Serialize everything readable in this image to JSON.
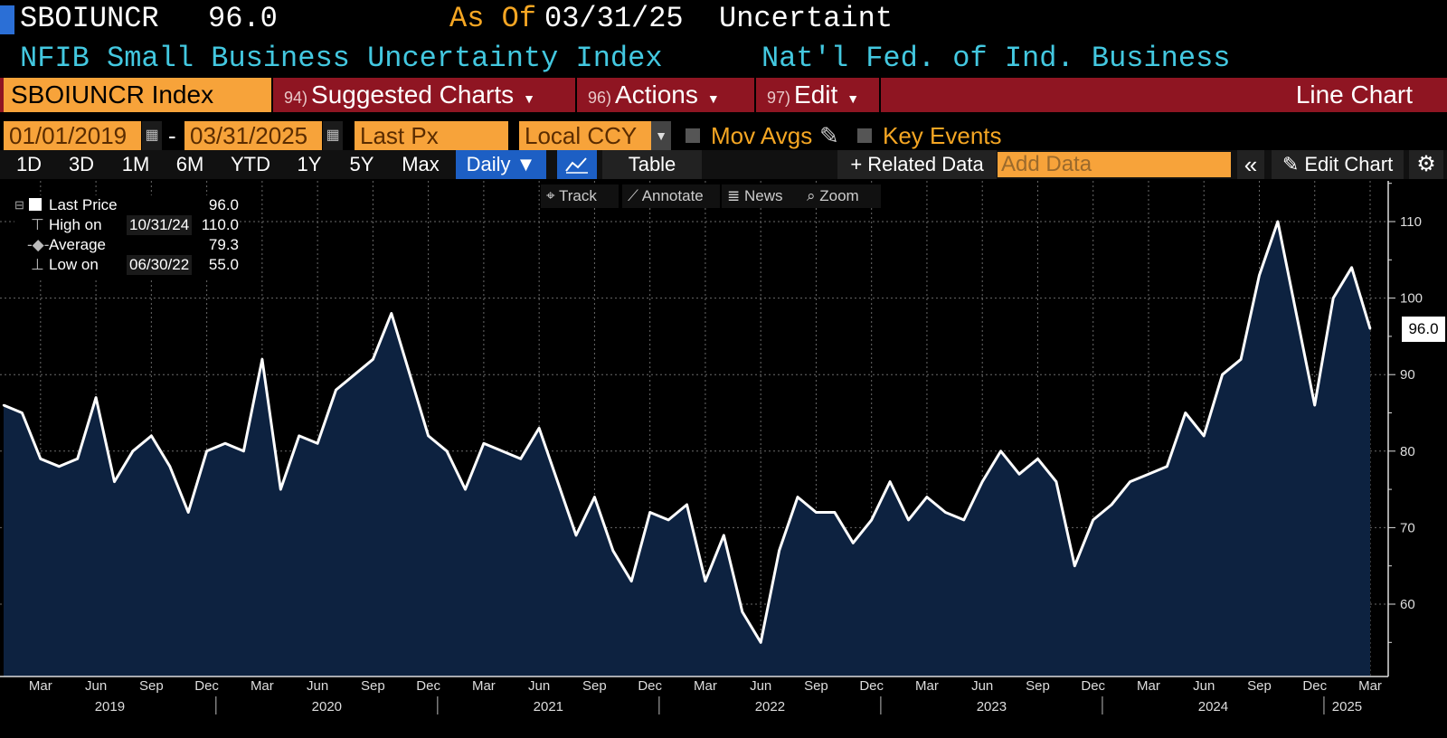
{
  "header": {
    "ticker": "SBOIUNCR",
    "last_value": "96.0",
    "as_of_label": "As Of",
    "as_of_date": "03/31/25",
    "field": "Uncertaint",
    "name": "NFIB Small Business Uncertainty Index",
    "source": "Nat'l Fed. of Ind. Business"
  },
  "toolbar": {
    "security": "SBOIUNCR Index",
    "menus": [
      {
        "num": "94)",
        "label": "Suggested Charts"
      },
      {
        "num": "96)",
        "label": "Actions"
      },
      {
        "num": "97)",
        "label": "Edit"
      }
    ],
    "chart_type": "Line Chart",
    "start_date": "01/01/2019",
    "end_date": "03/31/2025",
    "price_field": "Last Px",
    "currency": "Local CCY",
    "mov_avgs": "Mov Avgs",
    "key_events": "Key Events",
    "ranges": [
      "1D",
      "3D",
      "1M",
      "6M",
      "YTD",
      "1Y",
      "5Y",
      "Max"
    ],
    "period": "Daily ▼",
    "table": "Table",
    "related": "+ Related Data",
    "add_data_placeholder": "Add Data",
    "edit_chart": "Edit Chart",
    "chart_tools": [
      "Track",
      "Annotate",
      "News",
      "Zoom"
    ]
  },
  "legend": {
    "last_label": "Last Price",
    "last_value": "96.0",
    "high_label": "High on",
    "high_date": "10/31/24",
    "high_value": "110.0",
    "avg_label": "Average",
    "avg_value": "79.3",
    "low_label": "Low on",
    "low_date": "06/30/22",
    "low_value": "55.0"
  },
  "chart_data": {
    "type": "area",
    "x_start": "2019-01",
    "x_end": "2025-03",
    "frequency": "monthly",
    "values": [
      86,
      85,
      79,
      78,
      79,
      87,
      76,
      80,
      82,
      78,
      72,
      80,
      81,
      80,
      92,
      75,
      82,
      81,
      88,
      90,
      92,
      98,
      90,
      82,
      80,
      75,
      81,
      80,
      79,
      83,
      76,
      69,
      74,
      67,
      63,
      72,
      71,
      73,
      63,
      69,
      59,
      55,
      67,
      74,
      72,
      72,
      68,
      71,
      76,
      71,
      74,
      72,
      71,
      76,
      80,
      77,
      79,
      76,
      65,
      71,
      73,
      76,
      77,
      78,
      85,
      82,
      90,
      92,
      103,
      110,
      98,
      86,
      100,
      104,
      96
    ],
    "last_value": 96.0,
    "ylim": [
      50,
      115
    ],
    "y_ticks": [
      60,
      70,
      80,
      90,
      100,
      110
    ],
    "month_ticks": [
      "Mar",
      "Jun",
      "Sep",
      "Dec"
    ],
    "year_labels": [
      "2019",
      "2020",
      "2021",
      "2022",
      "2023",
      "2024",
      "2025"
    ],
    "grid": true,
    "colors": {
      "line": "#ffffff",
      "fill": "#0d2240",
      "grid": "#6a6a6a",
      "axis": "#dddddd"
    }
  }
}
